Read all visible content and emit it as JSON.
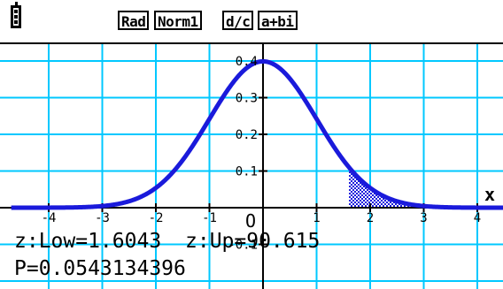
{
  "status_bar": {
    "battery_icon": "battery-icon",
    "angle_mode": "Rad",
    "display_mode": "Norm1",
    "fraction_mode": "d/c",
    "complex_mode": "a+bi"
  },
  "graph": {
    "x_axis_label": "x",
    "origin_label": "O",
    "x_ticks": [
      "-4",
      "-3",
      "-2",
      "-1",
      "1",
      "2",
      "3",
      "4"
    ],
    "y_ticks": [
      "0.4",
      "0.3",
      "0.2",
      "0.1",
      "-0.1"
    ],
    "curve_color": "#1a1adb",
    "grid_color": "#00c8ff"
  },
  "chart_data": {
    "type": "area",
    "function": "normal probability density, mean 0, sd 1",
    "xlim": [
      -4.7,
      4.9
    ],
    "ylim": [
      -0.14,
      0.43
    ],
    "shaded_region": {
      "lower": 1.6043,
      "upper": 90.615
    },
    "x_ticks": [
      -4,
      -3,
      -2,
      -1,
      1,
      2,
      3,
      4
    ],
    "y_ticks": [
      0.1,
      0.2,
      0.3,
      0.4,
      -0.1
    ],
    "grid": true
  },
  "readout": {
    "low": "z:Low=1.6043",
    "up": "z:Up=90.615",
    "probability": "P=0.0543134396"
  }
}
